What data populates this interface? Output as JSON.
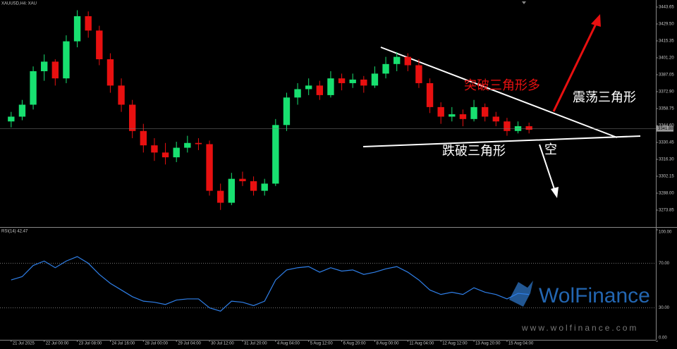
{
  "chart_data": [
    {
      "type": "candlestick",
      "title": "XAUUSD,H4: XAU",
      "up_color": "#18e070",
      "down_color": "#e81010",
      "categories": [
        "21 Jul 2025",
        null,
        null,
        "22 Jul 00:00",
        null,
        null,
        "23 Jul 08:00",
        null,
        null,
        "24 Jul 16:00",
        null,
        null,
        "28 Jul 00:00",
        null,
        null,
        "29 Jul 04:00",
        null,
        null,
        "30 Jul 12:00",
        null,
        null,
        "31 Jul 20:00",
        null,
        null,
        "4 Aug 04:00",
        null,
        null,
        "5 Aug 12:00",
        null,
        null,
        "6 Aug 20:00",
        null,
        null,
        "8 Aug 00:00",
        null,
        null,
        "11 Aug 04:00",
        null,
        null,
        "12 Aug 12:00",
        null,
        null,
        "13 Aug 20:00",
        null,
        null,
        "15 Aug 04:00",
        null,
        null
      ],
      "open": [
        3348,
        3352,
        3362,
        3390,
        3398,
        3384,
        3415,
        3436,
        3424,
        3400,
        3378,
        3362,
        3340,
        3328,
        3322,
        3318,
        3326,
        3330,
        3329,
        3290,
        3280,
        3300,
        3298,
        3290,
        3296,
        3345,
        3368,
        3375,
        3378,
        3370,
        3384,
        3380,
        3383,
        3378,
        3388,
        3396,
        3402,
        3395,
        3380,
        3360,
        3352,
        3354,
        3350,
        3360,
        3352,
        3348,
        3340,
        3344
      ],
      "high": [
        3356,
        3366,
        3394,
        3404,
        3400,
        3420,
        3441,
        3440,
        3428,
        3405,
        3384,
        3366,
        3346,
        3334,
        3330,
        3331,
        3336,
        3334,
        3332,
        3296,
        3305,
        3306,
        3302,
        3300,
        3350,
        3372,
        3380,
        3384,
        3382,
        3390,
        3388,
        3388,
        3386,
        3394,
        3402,
        3406,
        3405,
        3400,
        3384,
        3364,
        3360,
        3358,
        3366,
        3363,
        3356,
        3351,
        3348,
        3347
      ],
      "low": [
        3343,
        3349,
        3358,
        3382,
        3378,
        3380,
        3410,
        3418,
        3395,
        3372,
        3356,
        3334,
        3322,
        3315,
        3312,
        3314,
        3322,
        3324,
        3286,
        3274,
        3278,
        3294,
        3286,
        3286,
        3294,
        3340,
        3362,
        3370,
        3366,
        3368,
        3374,
        3376,
        3372,
        3376,
        3384,
        3390,
        3390,
        3376,
        3355,
        3346,
        3348,
        3344,
        3348,
        3348,
        3344,
        3336,
        3338,
        3338
      ],
      "close": [
        3352,
        3362,
        3390,
        3398,
        3384,
        3415,
        3436,
        3424,
        3400,
        3378,
        3362,
        3340,
        3328,
        3322,
        3318,
        3326,
        3330,
        3329,
        3290,
        3280,
        3300,
        3298,
        3290,
        3296,
        3345,
        3368,
        3375,
        3378,
        3370,
        3384,
        3380,
        3383,
        3378,
        3388,
        3396,
        3402,
        3395,
        3380,
        3360,
        3352,
        3354,
        3350,
        3360,
        3352,
        3348,
        3340,
        3344,
        3341
      ],
      "last_price": 3341.88,
      "ylim": [
        3260.88,
        3448.37
      ],
      "yticks": [
        3443.65,
        {
          "value": 3429.5,
          "label": "3429.50"
        },
        3415.35,
        {
          "value": 3401.2,
          "label": "3401.20"
        },
        3387.05,
        {
          "value": 3372.9,
          "label": "3372.90"
        },
        3358.75,
        {
          "value": 3344.6,
          "label": "3344.60"
        },
        3330.45,
        {
          "value": 3316.3,
          "label": "3316.30"
        },
        3302.15,
        {
          "value": 3288.0,
          "label": "3288.00"
        },
        3273.85
      ],
      "annotations": [
        "突破三角形多",
        "震荡三角形",
        "跌破三角形",
        "空"
      ],
      "watermark": [
        "WolFinance",
        "www.wolfinance.com"
      ]
    },
    {
      "type": "line",
      "title": "RSI(14) 42.47",
      "color": "#2f7fe8",
      "values": [
        55,
        58,
        68,
        72,
        66,
        72,
        76,
        70,
        60,
        52,
        46,
        40,
        36,
        35,
        33,
        37,
        38,
        38,
        30,
        27,
        36,
        35,
        32,
        36,
        55,
        64,
        66,
        67,
        62,
        66,
        63,
        64,
        60,
        62,
        65,
        67,
        62,
        55,
        46,
        42,
        44,
        42,
        48,
        44,
        42,
        38,
        43,
        42
      ],
      "ylim": [
        0,
        100
      ],
      "yticks": [
        {
          "value": 100,
          "label": "100.00"
        },
        {
          "value": 70,
          "label": "70.00"
        },
        {
          "value": 30,
          "label": "30.00"
        },
        {
          "value": 0,
          "label": "0.00"
        }
      ]
    }
  ]
}
